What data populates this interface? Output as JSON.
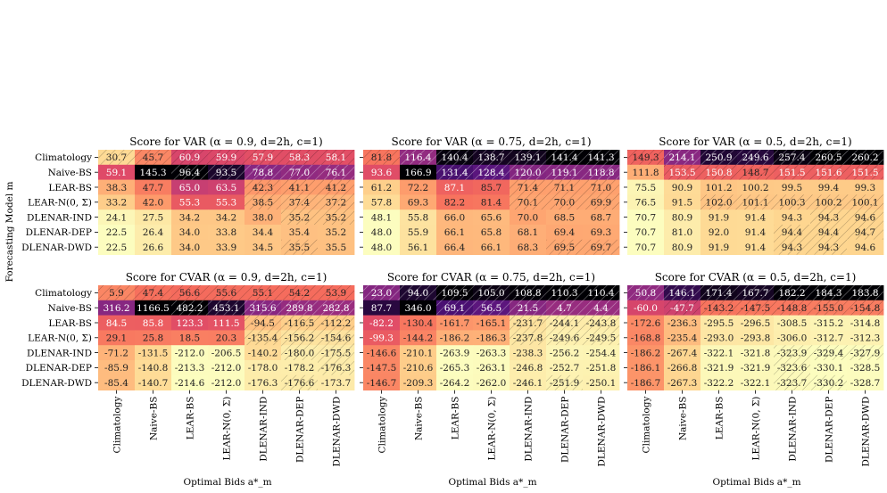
{
  "figure": {
    "ylabel": "Forecasting Model m",
    "xlabel": "Optimal Bids a*_m",
    "rows": [
      "Climatology",
      "Naive-BS",
      "LEAR-BS",
      "LEAR-N(0, Σ)",
      "DLENAR-IND",
      "DLENAR-DEP",
      "DLENAR-DWD"
    ],
    "cols": [
      "Climatology",
      "Naive-BS",
      "LEAR-BS",
      "LEAR-N(0, Σ)",
      "DLENAR-IND",
      "DLENAR-DEP",
      "DLENAR-DWD"
    ]
  },
  "chart_data": [
    {
      "type": "heatmap",
      "title": "Score for VAR (α = 0.9, d=2h, c=1)",
      "values": [
        [
          30.7,
          45.7,
          60.9,
          59.9,
          57.9,
          58.3,
          58.1
        ],
        [
          59.1,
          145.3,
          96.4,
          93.5,
          78.8,
          77.0,
          76.1
        ],
        [
          38.3,
          47.7,
          65.0,
          63.5,
          42.3,
          41.1,
          41.2
        ],
        [
          33.2,
          42.0,
          55.3,
          55.3,
          38.5,
          37.4,
          37.2
        ],
        [
          24.1,
          27.5,
          34.2,
          34.2,
          38.0,
          35.2,
          35.2
        ],
        [
          22.5,
          26.4,
          34.0,
          33.8,
          34.4,
          35.4,
          35.2
        ],
        [
          22.5,
          26.6,
          34.0,
          33.9,
          34.5,
          35.5,
          35.5
        ]
      ],
      "hatched": [
        [
          1,
          1,
          1,
          1,
          1,
          1,
          1
        ],
        [
          0,
          0,
          1,
          1,
          1,
          1,
          1
        ],
        [
          0,
          0,
          0,
          0,
          1,
          1,
          1
        ],
        [
          0,
          0,
          0,
          0,
          1,
          1,
          1
        ],
        [
          0,
          0,
          0,
          0,
          0,
          1,
          1
        ],
        [
          0,
          0,
          0,
          0,
          0,
          0,
          0
        ],
        [
          0,
          0,
          0,
          0,
          0,
          1,
          0
        ]
      ]
    },
    {
      "type": "heatmap",
      "title": "Score for VAR (α = 0.75, d=2h, c=1)",
      "values": [
        [
          81.8,
          116.4,
          140.4,
          138.7,
          139.1,
          141.4,
          141.3
        ],
        [
          93.6,
          166.9,
          131.4,
          128.4,
          120.0,
          119.1,
          118.8
        ],
        [
          61.2,
          72.2,
          87.1,
          85.7,
          71.4,
          71.1,
          71.0
        ],
        [
          57.8,
          69.3,
          82.2,
          81.4,
          70.1,
          70.0,
          69.9
        ],
        [
          48.1,
          55.8,
          66.0,
          65.6,
          70.0,
          68.5,
          68.7
        ],
        [
          48.0,
          55.9,
          66.1,
          65.8,
          68.1,
          69.4,
          69.3
        ],
        [
          48.0,
          56.1,
          66.4,
          66.1,
          68.3,
          69.5,
          69.7
        ]
      ],
      "hatched": [
        [
          1,
          1,
          1,
          1,
          1,
          1,
          1
        ],
        [
          0,
          0,
          1,
          1,
          1,
          1,
          1
        ],
        [
          0,
          0,
          0,
          0,
          1,
          1,
          1
        ],
        [
          0,
          0,
          0,
          0,
          1,
          1,
          1
        ],
        [
          0,
          0,
          0,
          0,
          0,
          0,
          0
        ],
        [
          0,
          0,
          0,
          0,
          0,
          0,
          0
        ],
        [
          0,
          0,
          0,
          0,
          0,
          1,
          1
        ]
      ]
    },
    {
      "type": "heatmap",
      "title": "Score for VAR (α = 0.5, d=2h, c=1)",
      "values": [
        [
          149.3,
          214.1,
          250.9,
          249.6,
          257.4,
          260.5,
          260.2
        ],
        [
          111.8,
          153.5,
          150.8,
          148.7,
          151.5,
          151.6,
          151.5
        ],
        [
          75.5,
          90.9,
          101.2,
          100.2,
          99.5,
          99.4,
          99.3
        ],
        [
          76.5,
          91.5,
          102.0,
          101.1,
          100.3,
          100.2,
          100.1
        ],
        [
          70.7,
          80.9,
          91.9,
          91.4,
          94.3,
          94.3,
          94.6
        ],
        [
          70.7,
          81.0,
          92.0,
          91.4,
          94.4,
          94.4,
          94.7
        ],
        [
          70.7,
          80.9,
          91.9,
          91.4,
          94.3,
          94.3,
          94.6
        ]
      ],
      "hatched": [
        [
          1,
          1,
          1,
          1,
          1,
          1,
          1
        ],
        [
          0,
          1,
          1,
          1,
          1,
          1,
          1
        ],
        [
          0,
          0,
          0,
          0,
          0,
          0,
          0
        ],
        [
          0,
          0,
          1,
          1,
          1,
          1,
          1
        ],
        [
          0,
          0,
          0,
          0,
          0,
          1,
          1
        ],
        [
          0,
          0,
          0,
          0,
          1,
          1,
          1
        ],
        [
          0,
          0,
          0,
          0,
          1,
          1,
          0
        ]
      ]
    },
    {
      "type": "heatmap",
      "title": "Score for CVAR (α = 0.9, d=2h, c=1)",
      "values": [
        [
          5.9,
          47.4,
          56.6,
          55.6,
          55.1,
          54.2,
          53.9
        ],
        [
          316.2,
          1166.5,
          482.2,
          453.1,
          315.6,
          289.8,
          282.8
        ],
        [
          84.5,
          85.8,
          123.3,
          111.5,
          -94.5,
          -116.5,
          -112.2
        ],
        [
          29.1,
          25.8,
          18.5,
          20.3,
          -135.4,
          -156.2,
          -154.6
        ],
        [
          -71.2,
          -131.5,
          -212.0,
          -206.5,
          -140.2,
          -180.0,
          -175.5
        ],
        [
          -85.9,
          -140.8,
          -213.3,
          -212.0,
          -178.0,
          -178.2,
          -176.3
        ],
        [
          -85.4,
          -140.7,
          -214.6,
          -212.0,
          -176.3,
          -176.6,
          -173.7
        ]
      ],
      "hatched": [
        [
          1,
          1,
          1,
          1,
          1,
          1,
          1
        ],
        [
          0,
          0,
          1,
          1,
          1,
          1,
          1
        ],
        [
          0,
          0,
          0,
          0,
          1,
          1,
          1
        ],
        [
          0,
          0,
          0,
          0,
          1,
          1,
          1
        ],
        [
          0,
          0,
          0,
          0,
          0,
          1,
          1
        ],
        [
          0,
          0,
          0,
          0,
          0,
          0,
          1
        ],
        [
          0,
          0,
          0,
          0,
          0,
          1,
          0
        ]
      ]
    },
    {
      "type": "heatmap",
      "title": "Score for CVAR (α = 0.75, d=2h, c=1)",
      "values": [
        [
          23.0,
          94.0,
          109.5,
          105.0,
          108.8,
          110.3,
          110.4
        ],
        [
          87.7,
          346.0,
          69.1,
          56.5,
          21.5,
          4.7,
          4.4
        ],
        [
          -82.2,
          -130.4,
          -161.7,
          -165.1,
          -231.7,
          -244.1,
          -243.8
        ],
        [
          -99.3,
          -144.2,
          -186.2,
          -186.3,
          -237.8,
          -249.6,
          -249.5
        ],
        [
          -146.6,
          -210.1,
          -263.9,
          -263.3,
          -238.3,
          -256.2,
          -254.4
        ],
        [
          -147.5,
          -210.6,
          -265.3,
          -263.1,
          -246.8,
          -252.7,
          -251.8
        ],
        [
          -146.7,
          -209.3,
          -264.2,
          -262.0,
          -246.1,
          -251.9,
          -250.1
        ]
      ],
      "hatched": [
        [
          1,
          1,
          1,
          1,
          1,
          1,
          1
        ],
        [
          0,
          0,
          1,
          1,
          1,
          1,
          1
        ],
        [
          0,
          0,
          0,
          0,
          1,
          1,
          1
        ],
        [
          0,
          0,
          0,
          0,
          1,
          1,
          1
        ],
        [
          0,
          0,
          0,
          0,
          0,
          0,
          0
        ],
        [
          0,
          0,
          0,
          0,
          0,
          0,
          0
        ],
        [
          0,
          0,
          0,
          0,
          0,
          1,
          0
        ]
      ]
    },
    {
      "type": "heatmap",
      "title": "Score for CVAR (α = 0.5, d=2h, c=1)",
      "values": [
        [
          50.8,
          146.1,
          171.4,
          167.7,
          182.2,
          184.3,
          183.8
        ],
        [
          -60.0,
          -47.7,
          -143.2,
          -147.5,
          -148.8,
          -155.0,
          -154.8
        ],
        [
          -172.6,
          -236.3,
          -295.5,
          -296.5,
          -308.5,
          -315.2,
          -314.8
        ],
        [
          -168.8,
          -235.4,
          -293.0,
          -293.8,
          -306.0,
          -312.7,
          -312.3
        ],
        [
          -186.2,
          -267.4,
          -322.1,
          -321.8,
          -323.9,
          -329.4,
          -327.9
        ],
        [
          -186.1,
          -266.8,
          -321.9,
          -321.9,
          -323.6,
          -330.1,
          -328.5
        ],
        [
          -186.7,
          -267.3,
          -322.2,
          -322.1,
          -323.7,
          -330.2,
          -328.7
        ]
      ],
      "hatched": [
        [
          1,
          1,
          1,
          1,
          1,
          1,
          1
        ],
        [
          0,
          1,
          1,
          1,
          1,
          1,
          1
        ],
        [
          0,
          0,
          0,
          0,
          0,
          0,
          0
        ],
        [
          0,
          0,
          0,
          0,
          0,
          0,
          0
        ],
        [
          0,
          0,
          0,
          0,
          1,
          1,
          1
        ],
        [
          0,
          0,
          0,
          0,
          1,
          0,
          0
        ],
        [
          0,
          0,
          0,
          0,
          1,
          1,
          0
        ]
      ]
    }
  ]
}
